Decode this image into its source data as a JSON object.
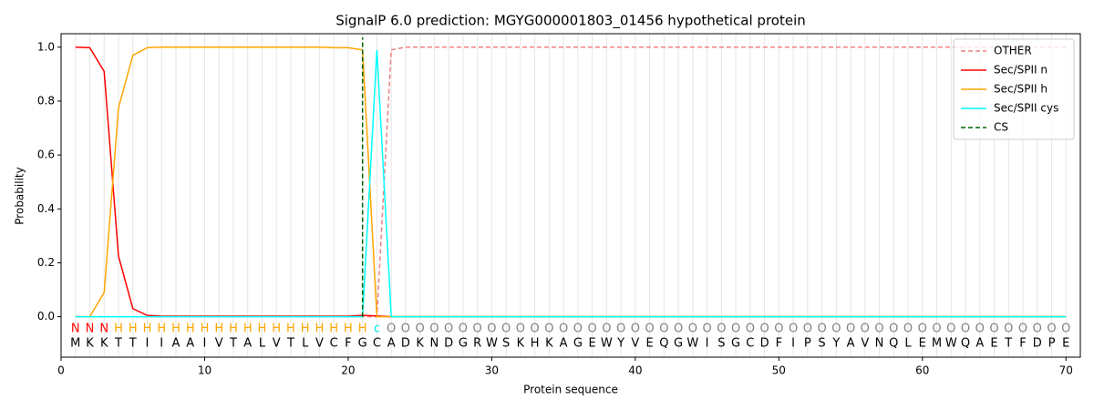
{
  "chart_data": {
    "type": "line",
    "title": "SignalP 6.0 prediction: MGYG000001803_01456 hypothetical protein",
    "x_label": "Protein sequence",
    "y_label": "Probability",
    "xlim": [
      0,
      71
    ],
    "ylim": [
      -0.15,
      1.05
    ],
    "xticks": [
      0,
      10,
      20,
      30,
      40,
      50,
      60,
      70
    ],
    "yticks": [
      {
        "value": 0,
        "label": "0.0"
      },
      {
        "value": 0.2,
        "label": "0.2"
      },
      {
        "value": 0.4,
        "label": "0.4"
      },
      {
        "value": 0.6,
        "label": "0.6"
      },
      {
        "value": 0.8,
        "label": "0.8"
      },
      {
        "value": 1.0,
        "label": "1.0"
      }
    ],
    "grid": true,
    "legend": "upper right",
    "x": [
      1,
      2,
      3,
      4,
      5,
      6,
      7,
      8,
      9,
      10,
      11,
      12,
      13,
      14,
      15,
      16,
      17,
      18,
      19,
      20,
      21,
      22,
      23,
      24,
      25,
      26,
      27,
      28,
      29,
      30,
      31,
      32,
      33,
      34,
      35,
      36,
      37,
      38,
      39,
      40,
      41,
      42,
      43,
      44,
      45,
      46,
      47,
      48,
      49,
      50,
      51,
      52,
      53,
      54,
      55,
      56,
      57,
      58,
      59,
      60,
      61,
      62,
      63,
      64,
      65,
      66,
      67,
      68,
      69,
      70
    ],
    "residues": [
      "M",
      "K",
      "K",
      "T",
      "T",
      "I",
      "I",
      "A",
      "A",
      "I",
      "V",
      "T",
      "A",
      "L",
      "V",
      "T",
      "L",
      "V",
      "C",
      "F",
      "G",
      "C",
      "A",
      "D",
      "K",
      "N",
      "D",
      "G",
      "R",
      "W",
      "S",
      "K",
      "H",
      "K",
      "A",
      "G",
      "E",
      "W",
      "Y",
      "V",
      "E",
      "Q",
      "G",
      "W",
      "I",
      "S",
      "G",
      "C",
      "D",
      "F",
      "I",
      "P",
      "S",
      "Y",
      "A",
      "V",
      "N",
      "Q",
      "L",
      "E",
      "M",
      "W",
      "Q",
      "A",
      "E",
      "T",
      "F",
      "D",
      "P",
      "E"
    ],
    "annotations": [
      "N",
      "N",
      "N",
      "H",
      "H",
      "H",
      "H",
      "H",
      "H",
      "H",
      "H",
      "H",
      "H",
      "H",
      "H",
      "H",
      "H",
      "H",
      "H",
      "H",
      "H",
      "c",
      "O",
      "O",
      "O",
      "O",
      "O",
      "O",
      "O",
      "O",
      "O",
      "O",
      "O",
      "O",
      "O",
      "O",
      "O",
      "O",
      "O",
      "O",
      "O",
      "O",
      "O",
      "O",
      "O",
      "O",
      "O",
      "O",
      "O",
      "O",
      "O",
      "O",
      "O",
      "O",
      "O",
      "O",
      "O",
      "O",
      "O",
      "O",
      "O",
      "O",
      "O",
      "O",
      "O",
      "O",
      "O",
      "O",
      "O",
      "O"
    ],
    "annotation_colors": {
      "N": "#ff0000",
      "H": "#ffa500",
      "c": "#00e5ee",
      "O": "#808080"
    },
    "series": [
      {
        "name": "OTHER",
        "color": "#f08080",
        "dash": true,
        "values": [
          0,
          0,
          0,
          0,
          0,
          0,
          0,
          0,
          0,
          0,
          0,
          0,
          0,
          0,
          0,
          0,
          0,
          0,
          0,
          0,
          0,
          0,
          0.99,
          1,
          1,
          1,
          1,
          1,
          1,
          1,
          1,
          1,
          1,
          1,
          1,
          1,
          1,
          1,
          1,
          1,
          1,
          1,
          1,
          1,
          1,
          1,
          1,
          1,
          1,
          1,
          1,
          1,
          1,
          1,
          1,
          1,
          1,
          1,
          1,
          1,
          1,
          1,
          1,
          1,
          1,
          1,
          1,
          1,
          1,
          1
        ]
      },
      {
        "name": "Sec/SPII n",
        "color": "#ff0000",
        "dash": false,
        "values": [
          1.0,
          0.998,
          0.91,
          0.225,
          0.03,
          0.005,
          0.002,
          0.002,
          0.002,
          0.002,
          0.002,
          0.002,
          0.002,
          0.002,
          0.002,
          0.002,
          0.002,
          0.002,
          0.002,
          0.002,
          0.005,
          0.003,
          0,
          0,
          0,
          0,
          0,
          0,
          0,
          0,
          0,
          0,
          0,
          0,
          0,
          0,
          0,
          0,
          0,
          0,
          0,
          0,
          0,
          0,
          0,
          0,
          0,
          0,
          0,
          0,
          0,
          0,
          0,
          0,
          0,
          0,
          0,
          0,
          0,
          0,
          0,
          0,
          0,
          0,
          0,
          0,
          0,
          0,
          0,
          0
        ]
      },
      {
        "name": "Sec/SPII h",
        "color": "#ffa500",
        "dash": false,
        "values": [
          0,
          0,
          0.09,
          0.775,
          0.97,
          0.998,
          1,
          1,
          1,
          1,
          1,
          1,
          1,
          1,
          1,
          1,
          1,
          1,
          0.998,
          0.998,
          0.99,
          0,
          0,
          0,
          0,
          0,
          0,
          0,
          0,
          0,
          0,
          0,
          0,
          0,
          0,
          0,
          0,
          0,
          0,
          0,
          0,
          0,
          0,
          0,
          0,
          0,
          0,
          0,
          0,
          0,
          0,
          0,
          0,
          0,
          0,
          0,
          0,
          0,
          0,
          0,
          0,
          0,
          0,
          0,
          0,
          0,
          0,
          0,
          0,
          0
        ]
      },
      {
        "name": "Sec/SPII cys",
        "color": "#00ffff",
        "dash": false,
        "values": [
          0,
          0,
          0,
          0,
          0,
          0,
          0,
          0,
          0,
          0,
          0,
          0,
          0,
          0,
          0,
          0,
          0,
          0,
          0,
          0,
          0,
          0.99,
          0,
          0,
          0,
          0,
          0,
          0,
          0,
          0,
          0,
          0,
          0,
          0,
          0,
          0,
          0,
          0,
          0,
          0,
          0,
          0,
          0,
          0,
          0,
          0,
          0,
          0,
          0,
          0,
          0,
          0,
          0,
          0,
          0,
          0,
          0,
          0,
          0,
          0,
          0,
          0,
          0,
          0,
          0,
          0,
          0,
          0,
          0,
          0
        ]
      }
    ],
    "cs": {
      "name": "CS",
      "color": "#006400",
      "x": 21
    }
  }
}
